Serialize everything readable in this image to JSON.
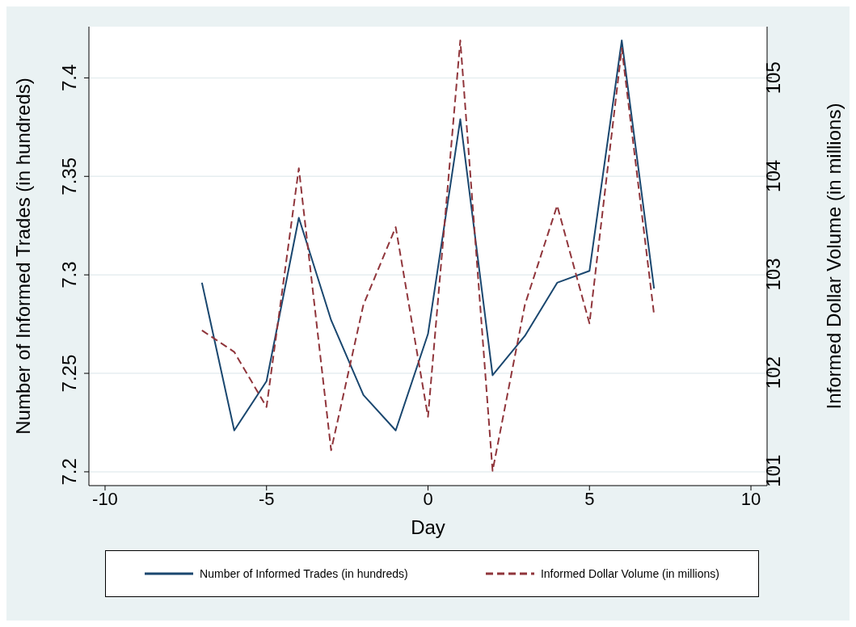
{
  "chart_data": {
    "type": "line",
    "xlabel": "Day",
    "ylabel": "Number of Informed Trades (in hundreds)",
    "y2label": "Informed Dollar Volume (in millions)",
    "x": [
      -7,
      -6,
      -5,
      -4,
      -3,
      -2,
      -1,
      0,
      1,
      2,
      3,
      4,
      5,
      6,
      7
    ],
    "series": [
      {
        "name": "Number of Informed Trades (in hundreds)",
        "color": "#1a476f",
        "line_style": "solid",
        "values": [
          7.296,
          7.221,
          7.246,
          7.329,
          7.277,
          7.239,
          7.221,
          7.27,
          7.379,
          7.249,
          7.269,
          7.296,
          7.302,
          7.419,
          7.293
        ]
      },
      {
        "name": "Informed Dollar Volume (in millions)",
        "color": "#90353b",
        "line_style": "dashed",
        "axis": "y2",
        "values": [
          102.43,
          102.21,
          101.65,
          104.08,
          101.21,
          102.69,
          103.48,
          101.55,
          105.38,
          101.0,
          102.69,
          103.7,
          102.5,
          105.3,
          102.59
        ]
      }
    ],
    "xlim": [
      -10.5,
      10.5
    ],
    "xticks": [
      -10,
      -5,
      0,
      5,
      10
    ],
    "ylim": [
      7.193,
      7.426
    ],
    "yticks": [
      7.2,
      7.25,
      7.3,
      7.35,
      7.4
    ],
    "y2lim": [
      100.85,
      105.52
    ],
    "y2ticks": [
      101,
      102,
      103,
      104,
      105
    ],
    "grid": "y",
    "legend": "bottom",
    "marker": "none"
  }
}
